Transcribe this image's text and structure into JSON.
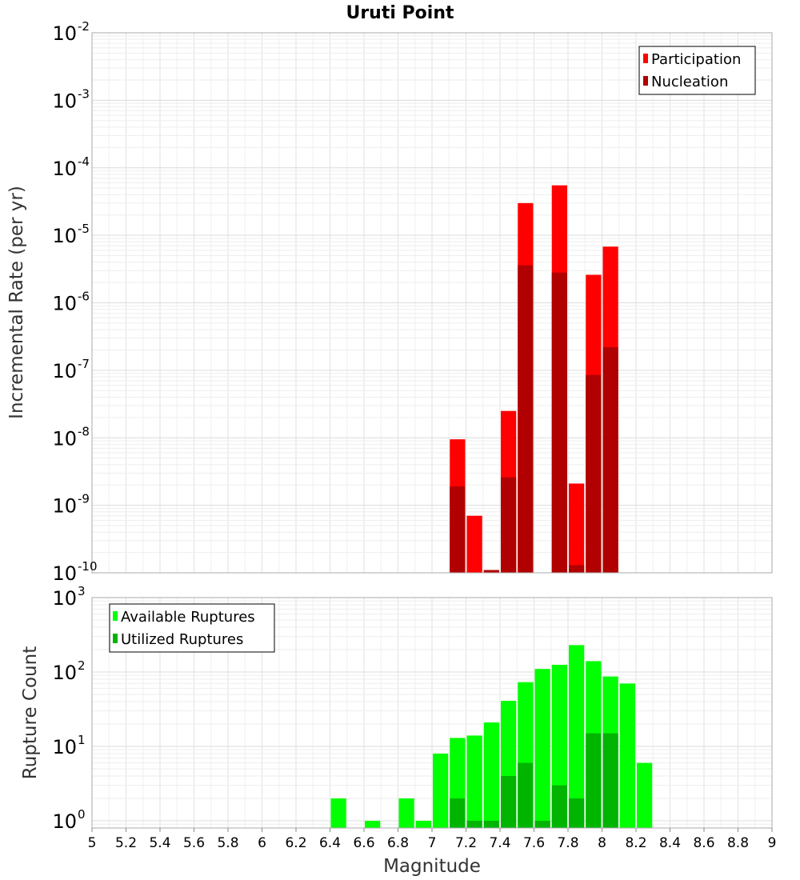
{
  "chart_data": [
    {
      "type": "bar",
      "title": "Uruti Point",
      "xlabel": "",
      "ylabel": "Incremental Rate (per yr)",
      "yscale": "log",
      "ylim": [
        1e-10,
        0.01
      ],
      "xlim": [
        5,
        9
      ],
      "bar_width": 0.1,
      "y_ticks": [
        {
          "base": "10",
          "exp": "-10",
          "value": 1e-10
        },
        {
          "base": "10",
          "exp": "-9",
          "value": 1e-09
        },
        {
          "base": "10",
          "exp": "-8",
          "value": 1e-08
        },
        {
          "base": "10",
          "exp": "-7",
          "value": 1e-07
        },
        {
          "base": "10",
          "exp": "-6",
          "value": 1e-06
        },
        {
          "base": "10",
          "exp": "-5",
          "value": 1e-05
        },
        {
          "base": "10",
          "exp": "-4",
          "value": 0.0001
        },
        {
          "base": "10",
          "exp": "-3",
          "value": 0.001
        },
        {
          "base": "10",
          "exp": "-2",
          "value": 0.01
        }
      ],
      "legend_position": "top-right",
      "series": [
        {
          "name": "Participation",
          "color": "#ff0000",
          "x": [
            7.15,
            7.25,
            7.35,
            7.45,
            7.55,
            7.75,
            7.85,
            7.95,
            8.05
          ],
          "values": [
            9.5e-09,
            7e-10,
            1.1e-10,
            2.5e-08,
            3e-05,
            5.5e-05,
            2.1e-09,
            2.6e-06,
            6.8e-06
          ]
        },
        {
          "name": "Nucleation",
          "color": "#b00000",
          "x": [
            7.15,
            7.35,
            7.45,
            7.55,
            7.75,
            7.85,
            7.95,
            8.05
          ],
          "values": [
            1.9e-09,
            1.1e-10,
            2.6e-09,
            3.6e-06,
            2.8e-06,
            1.3e-10,
            8.5e-08,
            2.2e-07
          ]
        }
      ]
    },
    {
      "type": "bar",
      "title": "",
      "xlabel": "Magnitude",
      "ylabel": "Rupture Count",
      "yscale": "log",
      "ylim": [
        0.8,
        1000
      ],
      "xlim": [
        5,
        9
      ],
      "bar_width": 0.1,
      "y_ticks": [
        {
          "base": "10",
          "exp": "0",
          "value": 1
        },
        {
          "base": "10",
          "exp": "1",
          "value": 10
        },
        {
          "base": "10",
          "exp": "2",
          "value": 100
        },
        {
          "base": "10",
          "exp": "3",
          "value": 1000
        }
      ],
      "x_ticks": [
        "5",
        "5.2",
        "5.4",
        "5.6",
        "5.8",
        "6",
        "6.2",
        "6.4",
        "6.6",
        "6.8",
        "7",
        "7.2",
        "7.4",
        "7.6",
        "7.8",
        "8",
        "8.2",
        "8.4",
        "8.6",
        "8.8",
        "9"
      ],
      "legend_position": "top-left",
      "series": [
        {
          "name": "Available Ruptures",
          "color": "#00ff00",
          "x": [
            6.45,
            6.65,
            6.85,
            6.95,
            7.05,
            7.15,
            7.25,
            7.35,
            7.45,
            7.55,
            7.65,
            7.75,
            7.85,
            7.95,
            8.05,
            8.15,
            8.25
          ],
          "values": [
            2,
            1,
            2,
            1,
            8,
            13,
            14,
            21,
            41,
            73,
            110,
            125,
            230,
            140,
            87,
            70,
            6
          ]
        },
        {
          "name": "Utilized Ruptures",
          "color": "#00b400",
          "x": [
            7.15,
            7.25,
            7.35,
            7.45,
            7.55,
            7.65,
            7.75,
            7.85,
            7.95,
            8.05
          ],
          "values": [
            2,
            1,
            1,
            4,
            6,
            1,
            3,
            2,
            15,
            15
          ]
        }
      ]
    }
  ]
}
